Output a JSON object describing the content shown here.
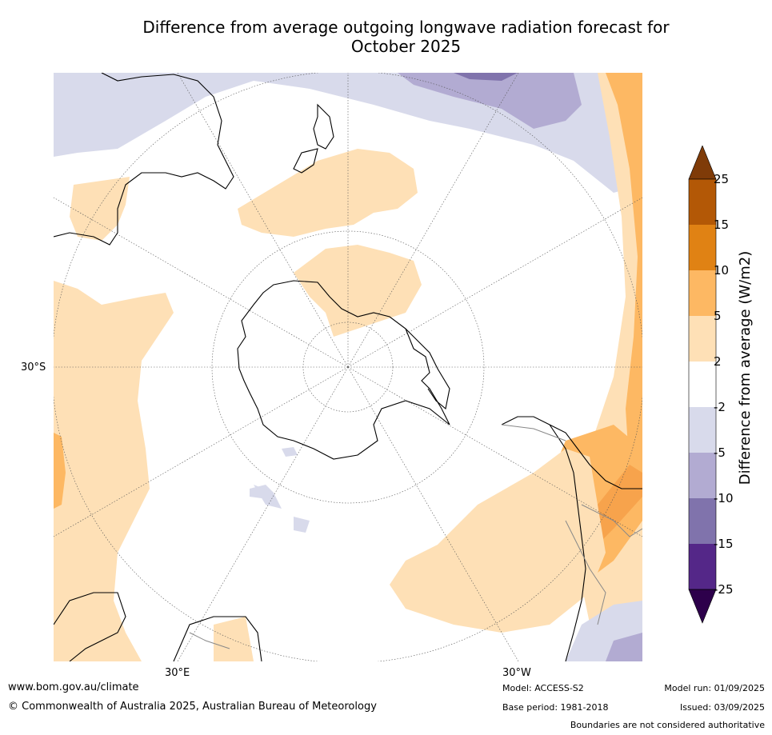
{
  "title_line1": "Difference from average outgoing longwave radiation forecast for",
  "title_line2": "October 2025",
  "axis_labels": {
    "left": "30°S",
    "bottom_left": "30°E",
    "bottom_right": "30°W"
  },
  "colorbar": {
    "title": "Difference from average (W/m2)",
    "ticks": [
      "25",
      "15",
      "10",
      "5",
      "2",
      "-2",
      "-5",
      "-10",
      "-15",
      "-25"
    ],
    "colors": {
      "above_25": "#7f3b08",
      "15_25": "#b35806",
      "10_15": "#e08214",
      "5_10": "#fdb863",
      "2_5": "#fee0b6",
      "neutral": "#ffffff",
      "m2_m5": "#d8daeb",
      "m5_m10": "#b2abd2",
      "m10_m15": "#8073ac",
      "m15_m25": "#542788",
      "below_m25": "#2d004b"
    }
  },
  "footer": {
    "url": "www.bom.gov.au/climate",
    "copyright": "© Commonwealth of Australia 2025, Australian Bureau of Meteorology",
    "model": "Model: ACCESS-S2",
    "base_period": "Base period: 1981-2018",
    "model_run": "Model run: 01/09/2025",
    "issued": "Issued: 03/09/2025",
    "disclaimer": "Boundaries are not considered authoritative"
  }
}
